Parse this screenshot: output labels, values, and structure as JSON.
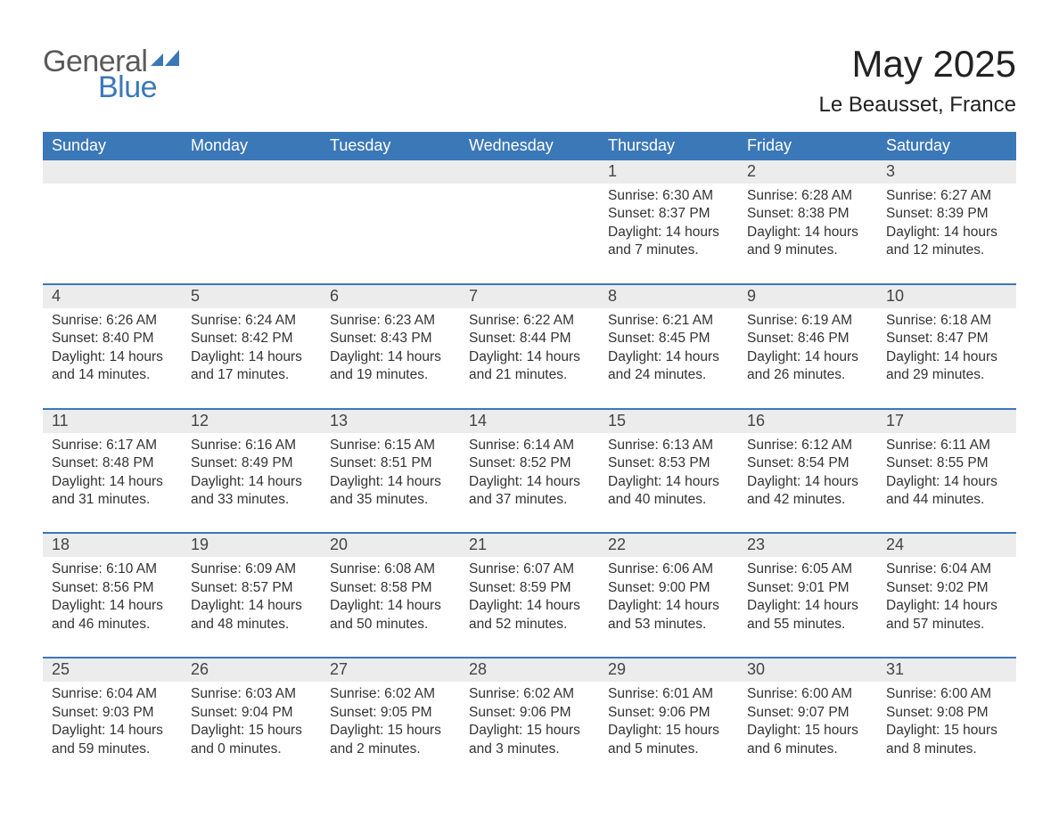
{
  "logo": {
    "text_general": "General",
    "text_blue": "Blue",
    "swoosh_color": "#3b78b8"
  },
  "title": "May 2025",
  "location": "Le Beausset, France",
  "colors": {
    "header_bg": "#3b78b8",
    "header_text": "#ffffff",
    "daynum_bg": "#ececec",
    "body_text": "#333333",
    "page_bg": "#ffffff",
    "border": "#3b78b8"
  },
  "fonts": {
    "family": "Arial",
    "title_size_pt": 32,
    "location_size_pt": 18,
    "header_size_pt": 14,
    "body_size_pt": 12
  },
  "day_headers": [
    "Sunday",
    "Monday",
    "Tuesday",
    "Wednesday",
    "Thursday",
    "Friday",
    "Saturday"
  ],
  "weeks": [
    {
      "days": [
        {
          "num": "",
          "sunrise": "",
          "sunset": "",
          "daylight": ""
        },
        {
          "num": "",
          "sunrise": "",
          "sunset": "",
          "daylight": ""
        },
        {
          "num": "",
          "sunrise": "",
          "sunset": "",
          "daylight": ""
        },
        {
          "num": "",
          "sunrise": "",
          "sunset": "",
          "daylight": ""
        },
        {
          "num": "1",
          "sunrise": "Sunrise: 6:30 AM",
          "sunset": "Sunset: 8:37 PM",
          "daylight": "Daylight: 14 hours and 7 minutes."
        },
        {
          "num": "2",
          "sunrise": "Sunrise: 6:28 AM",
          "sunset": "Sunset: 8:38 PM",
          "daylight": "Daylight: 14 hours and 9 minutes."
        },
        {
          "num": "3",
          "sunrise": "Sunrise: 6:27 AM",
          "sunset": "Sunset: 8:39 PM",
          "daylight": "Daylight: 14 hours and 12 minutes."
        }
      ]
    },
    {
      "days": [
        {
          "num": "4",
          "sunrise": "Sunrise: 6:26 AM",
          "sunset": "Sunset: 8:40 PM",
          "daylight": "Daylight: 14 hours and 14 minutes."
        },
        {
          "num": "5",
          "sunrise": "Sunrise: 6:24 AM",
          "sunset": "Sunset: 8:42 PM",
          "daylight": "Daylight: 14 hours and 17 minutes."
        },
        {
          "num": "6",
          "sunrise": "Sunrise: 6:23 AM",
          "sunset": "Sunset: 8:43 PM",
          "daylight": "Daylight: 14 hours and 19 minutes."
        },
        {
          "num": "7",
          "sunrise": "Sunrise: 6:22 AM",
          "sunset": "Sunset: 8:44 PM",
          "daylight": "Daylight: 14 hours and 21 minutes."
        },
        {
          "num": "8",
          "sunrise": "Sunrise: 6:21 AM",
          "sunset": "Sunset: 8:45 PM",
          "daylight": "Daylight: 14 hours and 24 minutes."
        },
        {
          "num": "9",
          "sunrise": "Sunrise: 6:19 AM",
          "sunset": "Sunset: 8:46 PM",
          "daylight": "Daylight: 14 hours and 26 minutes."
        },
        {
          "num": "10",
          "sunrise": "Sunrise: 6:18 AM",
          "sunset": "Sunset: 8:47 PM",
          "daylight": "Daylight: 14 hours and 29 minutes."
        }
      ]
    },
    {
      "days": [
        {
          "num": "11",
          "sunrise": "Sunrise: 6:17 AM",
          "sunset": "Sunset: 8:48 PM",
          "daylight": "Daylight: 14 hours and 31 minutes."
        },
        {
          "num": "12",
          "sunrise": "Sunrise: 6:16 AM",
          "sunset": "Sunset: 8:49 PM",
          "daylight": "Daylight: 14 hours and 33 minutes."
        },
        {
          "num": "13",
          "sunrise": "Sunrise: 6:15 AM",
          "sunset": "Sunset: 8:51 PM",
          "daylight": "Daylight: 14 hours and 35 minutes."
        },
        {
          "num": "14",
          "sunrise": "Sunrise: 6:14 AM",
          "sunset": "Sunset: 8:52 PM",
          "daylight": "Daylight: 14 hours and 37 minutes."
        },
        {
          "num": "15",
          "sunrise": "Sunrise: 6:13 AM",
          "sunset": "Sunset: 8:53 PM",
          "daylight": "Daylight: 14 hours and 40 minutes."
        },
        {
          "num": "16",
          "sunrise": "Sunrise: 6:12 AM",
          "sunset": "Sunset: 8:54 PM",
          "daylight": "Daylight: 14 hours and 42 minutes."
        },
        {
          "num": "17",
          "sunrise": "Sunrise: 6:11 AM",
          "sunset": "Sunset: 8:55 PM",
          "daylight": "Daylight: 14 hours and 44 minutes."
        }
      ]
    },
    {
      "days": [
        {
          "num": "18",
          "sunrise": "Sunrise: 6:10 AM",
          "sunset": "Sunset: 8:56 PM",
          "daylight": "Daylight: 14 hours and 46 minutes."
        },
        {
          "num": "19",
          "sunrise": "Sunrise: 6:09 AM",
          "sunset": "Sunset: 8:57 PM",
          "daylight": "Daylight: 14 hours and 48 minutes."
        },
        {
          "num": "20",
          "sunrise": "Sunrise: 6:08 AM",
          "sunset": "Sunset: 8:58 PM",
          "daylight": "Daylight: 14 hours and 50 minutes."
        },
        {
          "num": "21",
          "sunrise": "Sunrise: 6:07 AM",
          "sunset": "Sunset: 8:59 PM",
          "daylight": "Daylight: 14 hours and 52 minutes."
        },
        {
          "num": "22",
          "sunrise": "Sunrise: 6:06 AM",
          "sunset": "Sunset: 9:00 PM",
          "daylight": "Daylight: 14 hours and 53 minutes."
        },
        {
          "num": "23",
          "sunrise": "Sunrise: 6:05 AM",
          "sunset": "Sunset: 9:01 PM",
          "daylight": "Daylight: 14 hours and 55 minutes."
        },
        {
          "num": "24",
          "sunrise": "Sunrise: 6:04 AM",
          "sunset": "Sunset: 9:02 PM",
          "daylight": "Daylight: 14 hours and 57 minutes."
        }
      ]
    },
    {
      "days": [
        {
          "num": "25",
          "sunrise": "Sunrise: 6:04 AM",
          "sunset": "Sunset: 9:03 PM",
          "daylight": "Daylight: 14 hours and 59 minutes."
        },
        {
          "num": "26",
          "sunrise": "Sunrise: 6:03 AM",
          "sunset": "Sunset: 9:04 PM",
          "daylight": "Daylight: 15 hours and 0 minutes."
        },
        {
          "num": "27",
          "sunrise": "Sunrise: 6:02 AM",
          "sunset": "Sunset: 9:05 PM",
          "daylight": "Daylight: 15 hours and 2 minutes."
        },
        {
          "num": "28",
          "sunrise": "Sunrise: 6:02 AM",
          "sunset": "Sunset: 9:06 PM",
          "daylight": "Daylight: 15 hours and 3 minutes."
        },
        {
          "num": "29",
          "sunrise": "Sunrise: 6:01 AM",
          "sunset": "Sunset: 9:06 PM",
          "daylight": "Daylight: 15 hours and 5 minutes."
        },
        {
          "num": "30",
          "sunrise": "Sunrise: 6:00 AM",
          "sunset": "Sunset: 9:07 PM",
          "daylight": "Daylight: 15 hours and 6 minutes."
        },
        {
          "num": "31",
          "sunrise": "Sunrise: 6:00 AM",
          "sunset": "Sunset: 9:08 PM",
          "daylight": "Daylight: 15 hours and 8 minutes."
        }
      ]
    }
  ]
}
